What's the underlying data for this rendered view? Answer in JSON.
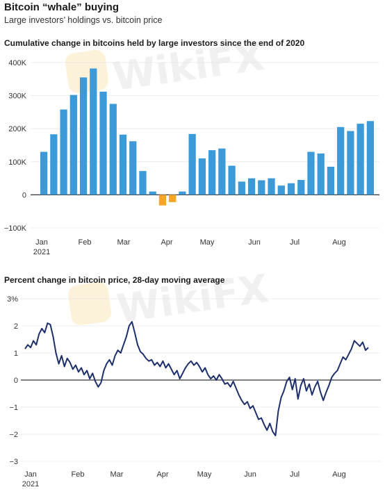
{
  "header": {
    "title": "Bitcoin “whale” buying",
    "subtitle": "Large investors’ holdings vs. bitcoin price"
  },
  "watermark": {
    "text": "WikiFX"
  },
  "colors": {
    "positive_bar": "#3d9ad9",
    "negative_bar": "#f5a623",
    "line": "#1c2e6b",
    "axis": "#333333",
    "grid": "#e6e6e6"
  },
  "chart_data": [
    {
      "type": "bar",
      "title": "Cumulative change in bitcoins held by large investors since the end of 2020",
      "xlabel": "",
      "ylabel": "",
      "ylim": [
        -100000,
        400000
      ],
      "yticks": [
        -100000,
        0,
        100000,
        200000,
        300000,
        400000
      ],
      "ytick_labels": [
        "−100K",
        "0",
        "100K",
        "200K",
        "300K",
        "400K"
      ],
      "xticks": [
        "Jan",
        "Feb",
        "Mar",
        "Apr",
        "May",
        "Jun",
        "Jul",
        "Aug"
      ],
      "xtick_sub": "2021",
      "values": [
        130000,
        183000,
        258000,
        302000,
        355000,
        382000,
        312000,
        275000,
        182000,
        162000,
        72000,
        10000,
        -32000,
        -22000,
        10000,
        184000,
        110000,
        135000,
        140000,
        88000,
        40000,
        50000,
        44000,
        50000,
        28000,
        35000,
        45000,
        130000,
        125000,
        85000,
        205000,
        193000,
        215000,
        223000
      ]
    },
    {
      "type": "line",
      "title": "Percent change in bitcoin price, 28-day moving average",
      "xlabel": "",
      "ylabel": "",
      "ylim": [
        -3,
        3
      ],
      "yticks": [
        -3,
        -2,
        -1,
        0,
        1,
        2,
        3
      ],
      "ytick_labels": [
        "−3",
        "−2",
        "−1",
        "0",
        "1",
        "2",
        "3%"
      ],
      "xticks": [
        "Jan",
        "Feb",
        "Mar",
        "Apr",
        "May",
        "Jun",
        "Jul",
        "Aug"
      ],
      "xtick_sub": "2021",
      "x_range": [
        0,
        236
      ],
      "series": [
        {
          "points": [
            [
              0,
              1.15
            ],
            [
              2,
              1.3
            ],
            [
              4,
              1.2
            ],
            [
              6,
              1.45
            ],
            [
              8,
              1.3
            ],
            [
              10,
              1.7
            ],
            [
              12,
              1.9
            ],
            [
              14,
              1.75
            ],
            [
              16,
              2.1
            ],
            [
              18,
              2.05
            ],
            [
              20,
              1.6
            ],
            [
              22,
              1.0
            ],
            [
              24,
              0.6
            ],
            [
              26,
              0.9
            ],
            [
              28,
              0.5
            ],
            [
              30,
              0.8
            ],
            [
              32,
              0.65
            ],
            [
              34,
              0.4
            ],
            [
              36,
              0.55
            ],
            [
              38,
              0.3
            ],
            [
              40,
              0.45
            ],
            [
              42,
              0.2
            ],
            [
              44,
              0.35
            ],
            [
              46,
              0.05
            ],
            [
              48,
              0.25
            ],
            [
              50,
              -0.05
            ],
            [
              52,
              -0.25
            ],
            [
              54,
              -0.1
            ],
            [
              56,
              0.35
            ],
            [
              58,
              0.6
            ],
            [
              60,
              0.75
            ],
            [
              62,
              0.55
            ],
            [
              64,
              0.9
            ],
            [
              66,
              1.1
            ],
            [
              68,
              1.0
            ],
            [
              70,
              1.3
            ],
            [
              72,
              1.6
            ],
            [
              74,
              2.0
            ],
            [
              76,
              2.15
            ],
            [
              78,
              1.75
            ],
            [
              80,
              1.3
            ],
            [
              82,
              1.05
            ],
            [
              84,
              0.95
            ],
            [
              86,
              0.8
            ],
            [
              88,
              0.7
            ],
            [
              90,
              0.75
            ],
            [
              92,
              0.55
            ],
            [
              94,
              0.65
            ],
            [
              96,
              0.5
            ],
            [
              98,
              0.7
            ],
            [
              100,
              0.45
            ],
            [
              102,
              0.6
            ],
            [
              104,
              0.4
            ],
            [
              106,
              0.2
            ],
            [
              108,
              0.35
            ],
            [
              110,
              0.05
            ],
            [
              112,
              0.25
            ],
            [
              114,
              0.45
            ],
            [
              116,
              0.6
            ],
            [
              118,
              0.7
            ],
            [
              120,
              0.55
            ],
            [
              122,
              0.65
            ],
            [
              124,
              0.5
            ],
            [
              126,
              0.3
            ],
            [
              128,
              0.45
            ],
            [
              130,
              0.2
            ],
            [
              132,
              0.05
            ],
            [
              134,
              0.15
            ],
            [
              136,
              0.0
            ],
            [
              138,
              0.2
            ],
            [
              140,
              0.05
            ],
            [
              142,
              -0.15
            ],
            [
              144,
              -0.1
            ],
            [
              146,
              -0.25
            ],
            [
              148,
              -0.05
            ],
            [
              150,
              -0.3
            ],
            [
              152,
              -0.55
            ],
            [
              154,
              -0.75
            ],
            [
              156,
              -0.9
            ],
            [
              158,
              -0.8
            ],
            [
              160,
              -1.05
            ],
            [
              162,
              -0.95
            ],
            [
              164,
              -1.2
            ],
            [
              166,
              -1.45
            ],
            [
              168,
              -1.4
            ],
            [
              170,
              -1.65
            ],
            [
              172,
              -1.85
            ],
            [
              174,
              -1.6
            ],
            [
              176,
              -1.9
            ],
            [
              178,
              -2.05
            ],
            [
              180,
              -1.15
            ],
            [
              182,
              -0.65
            ],
            [
              184,
              -0.4
            ],
            [
              186,
              -0.05
            ],
            [
              188,
              0.1
            ],
            [
              190,
              -0.35
            ],
            [
              192,
              0.05
            ],
            [
              194,
              -0.7
            ],
            [
              196,
              -0.2
            ],
            [
              198,
              0.05
            ],
            [
              200,
              -0.4
            ],
            [
              202,
              -0.15
            ],
            [
              204,
              -0.55
            ],
            [
              206,
              -0.25
            ],
            [
              208,
              -0.05
            ],
            [
              210,
              -0.45
            ],
            [
              212,
              -0.75
            ],
            [
              214,
              -0.45
            ],
            [
              216,
              -0.2
            ],
            [
              218,
              0.1
            ],
            [
              220,
              0.25
            ],
            [
              222,
              0.35
            ],
            [
              224,
              0.6
            ],
            [
              226,
              0.85
            ],
            [
              228,
              0.75
            ],
            [
              230,
              0.95
            ],
            [
              232,
              1.15
            ],
            [
              234,
              1.45
            ],
            [
              236,
              1.35
            ],
            [
              238,
              1.25
            ],
            [
              240,
              1.4
            ],
            [
              242,
              1.1
            ],
            [
              244,
              1.2
            ]
          ]
        }
      ]
    }
  ]
}
